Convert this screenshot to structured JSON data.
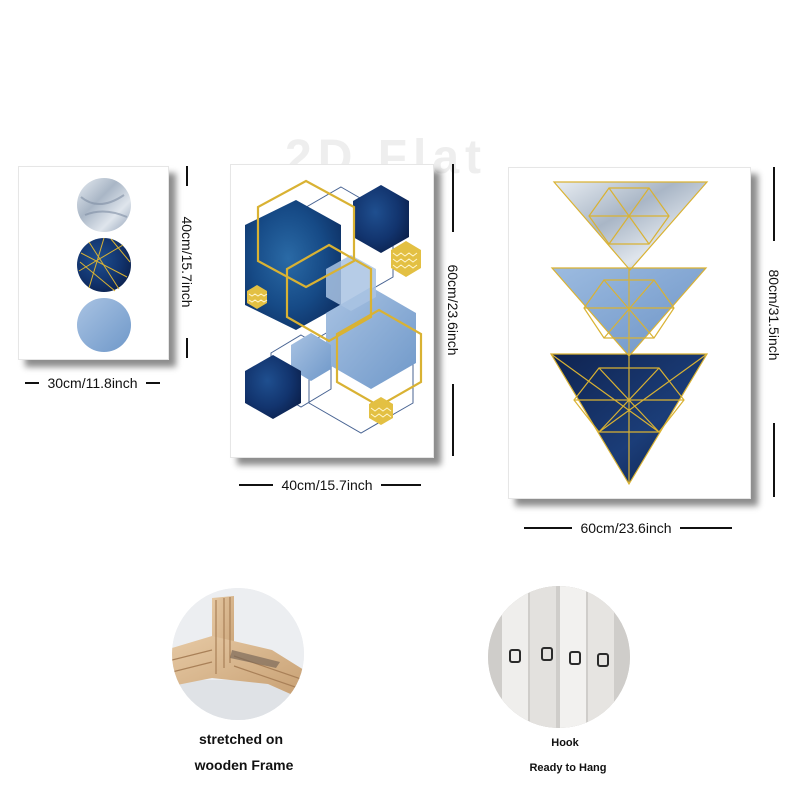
{
  "watermark": "2D Flat",
  "panels": {
    "small": {
      "width_label": "30cm/11.8inch",
      "height_label": "40cm/15.7inch"
    },
    "medium": {
      "width_label": "40cm/15.7inch",
      "height_label": "60cm/23.6inch"
    },
    "large": {
      "width_label": "60cm/23.6inch",
      "height_label": "80cm/31.5inch"
    }
  },
  "features": {
    "frame": {
      "caption_line1": "stretched on",
      "caption_line2": "wooden Frame"
    },
    "hook": {
      "caption_line1": "Hook",
      "caption_line2": "Ready to Hang"
    }
  },
  "colors": {
    "navy": "#12285a",
    "blue": "#7fa6d3",
    "gold": "#d9b233",
    "marble": "#c8d2de"
  }
}
